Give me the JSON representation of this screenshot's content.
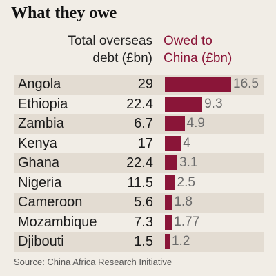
{
  "chart_data": {
    "type": "table",
    "title": "What they owe",
    "columns": {
      "total": "Total overseas debt (£bn)",
      "total_lines": [
        "Total overseas",
        "debt (£bn)"
      ],
      "china": "Owed to China (£bn)",
      "china_lines": [
        "Owed to",
        "China (£bn)"
      ]
    },
    "rows": [
      {
        "country": "Angola",
        "total": "29",
        "owed": "16.5",
        "owed_value": 16.5
      },
      {
        "country": "Ethiopia",
        "total": "22.4",
        "owed": "9.3",
        "owed_value": 9.3
      },
      {
        "country": "Zambia",
        "total": "6.7",
        "owed": "4.9",
        "owed_value": 4.9
      },
      {
        "country": "Kenya",
        "total": "17",
        "owed": "4",
        "owed_value": 4
      },
      {
        "country": "Ghana",
        "total": "22.4",
        "owed": "3.1",
        "owed_value": 3.1
      },
      {
        "country": "Nigeria",
        "total": "11.5",
        "owed": "2.5",
        "owed_value": 2.5
      },
      {
        "country": "Cameroon",
        "total": "5.6",
        "owed": "1.8",
        "owed_value": 1.8
      },
      {
        "country": "Mozambique",
        "total": "7.3",
        "owed": "1.77",
        "owed_value": 1.77
      },
      {
        "country": "Djibouti",
        "total": "1.5",
        "owed": "1.2",
        "owed_value": 1.2
      }
    ],
    "bar_color": "#8a1538",
    "source": "Source: China Africa Research Initiative"
  }
}
